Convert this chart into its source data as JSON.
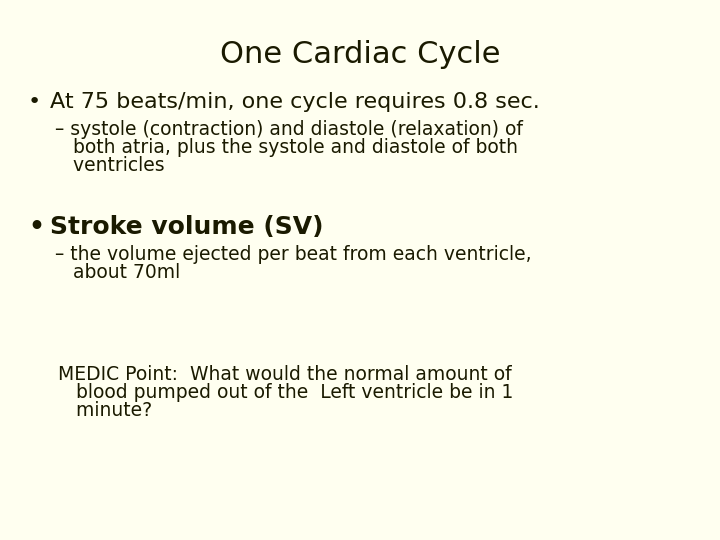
{
  "background_color": "#FFFFF0",
  "title": "One Cardiac Cycle",
  "title_fontsize": 22,
  "bullet1": "At 75 beats/min, one cycle requires 0.8 sec.",
  "bullet1_fontsize": 16,
  "sub1_line1": "– systole (contraction) and diastole (relaxation) of",
  "sub1_line2": "   both atria, plus the systole and diastole of both",
  "sub1_line3": "   ventricles",
  "sub1_fontsize": 13.5,
  "bullet2": "Stroke volume (SV)",
  "bullet2_fontsize": 18,
  "sub2_line1": "– the volume ejected per beat from each ventricle,",
  "sub2_line2": "   about 70ml",
  "sub2_fontsize": 13.5,
  "medic_line1": "   MEDIC Point:  What would the normal amount of",
  "medic_line2": "      blood pumped out of the  Left ventricle be in 1",
  "medic_line3": "      minute?",
  "medic_fontsize": 13.5,
  "text_color": "#1a1a00",
  "bullet_color": "#1a1a00"
}
